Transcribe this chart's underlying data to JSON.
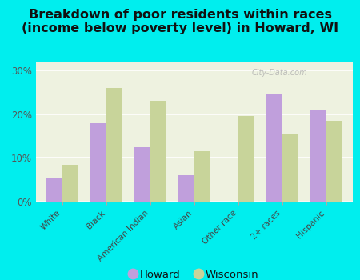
{
  "categories": [
    "White",
    "Black",
    "American Indian",
    "Asian",
    "Other race",
    "2+ races",
    "Hispanic"
  ],
  "howard_values": [
    5.5,
    18.0,
    12.5,
    6.0,
    0.0,
    24.5,
    21.0
  ],
  "wisconsin_values": [
    8.5,
    26.0,
    23.0,
    11.5,
    19.5,
    15.5,
    18.5
  ],
  "howard_color": "#c09fdc",
  "wisconsin_color": "#c8d49a",
  "title": "Breakdown of poor residents within races\n(income below poverty level) in Howard, WI",
  "ylim": [
    0,
    32
  ],
  "yticks": [
    0,
    10,
    20,
    30
  ],
  "ytick_labels": [
    "0%",
    "10%",
    "20%",
    "30%"
  ],
  "background_color": "#00eeee",
  "plot_bg_color": "#eef2e0",
  "title_fontsize": 11.5,
  "bar_width": 0.36,
  "legend_labels": [
    "Howard",
    "Wisconsin"
  ],
  "watermark": "City-Data.com"
}
